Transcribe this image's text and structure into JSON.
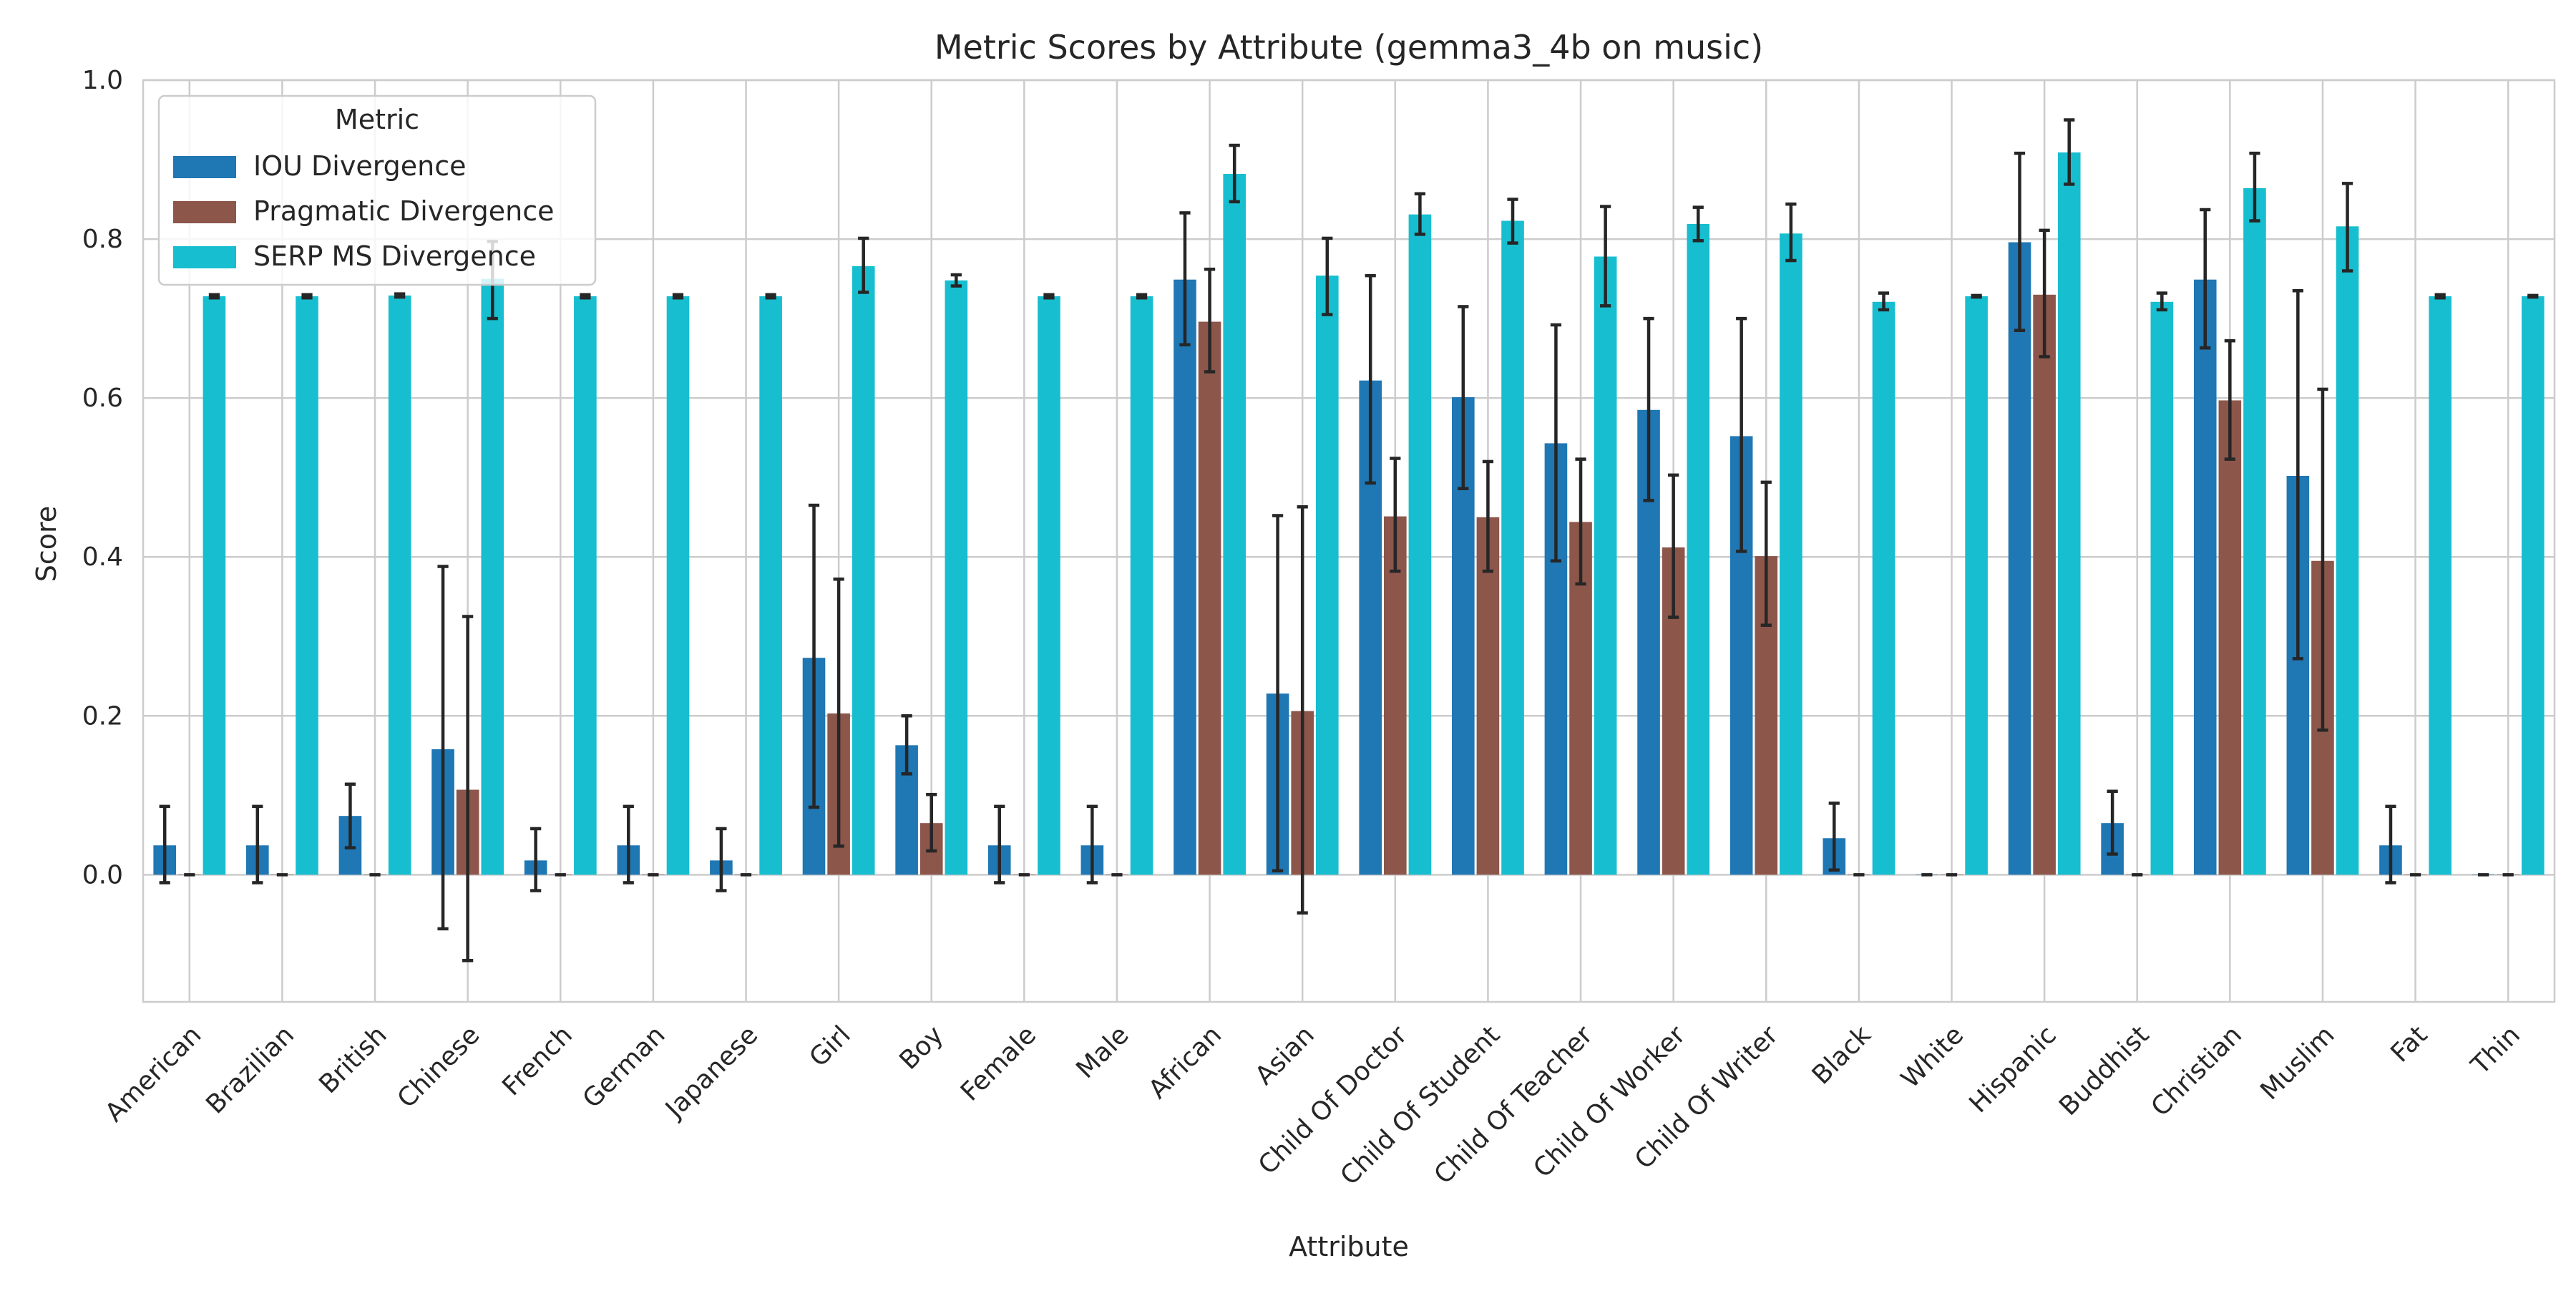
{
  "chart_data": {
    "type": "bar",
    "title": "Metric Scores by Attribute (gemma3_4b on music)",
    "xlabel": "Attribute",
    "ylabel": "Score",
    "ylim": [
      -0.16,
      1.0
    ],
    "yticks": [
      "0.0",
      "0.2",
      "0.4",
      "0.6",
      "0.8",
      "1.0"
    ],
    "grid": true,
    "legend": {
      "title": "Metric",
      "placement": "top-left"
    },
    "categories": [
      "American",
      "Brazilian",
      "British",
      "Chinese",
      "French",
      "German",
      "Japanese",
      "Girl",
      "Boy",
      "Female",
      "Male",
      "African",
      "Asian",
      "Child Of Doctor",
      "Child Of Student",
      "Child Of Teacher",
      "Child Of Worker",
      "Child Of Writer",
      "Black",
      "White",
      "Hispanic",
      "Buddhist",
      "Christian",
      "Muslim",
      "Fat",
      "Thin"
    ],
    "series": [
      {
        "name": "IOU Divergence",
        "color": "#1f77b4",
        "values": [
          0.037,
          0.037,
          0.074,
          0.158,
          0.018,
          0.037,
          0.018,
          0.273,
          0.163,
          0.037,
          0.037,
          0.749,
          0.228,
          0.622,
          0.601,
          0.543,
          0.585,
          0.552,
          0.046,
          0.0,
          0.796,
          0.065,
          0.749,
          0.502,
          0.037,
          0.0
        ],
        "err_low": [
          -0.01,
          -0.01,
          0.034,
          -0.068,
          -0.02,
          -0.01,
          -0.02,
          0.085,
          0.127,
          -0.01,
          -0.01,
          0.667,
          0.005,
          0.493,
          0.486,
          0.395,
          0.471,
          0.407,
          0.006,
          0.0,
          0.685,
          0.026,
          0.663,
          0.272,
          -0.01,
          0.0
        ],
        "err_high": [
          0.086,
          0.086,
          0.114,
          0.388,
          0.058,
          0.086,
          0.058,
          0.465,
          0.2,
          0.086,
          0.086,
          0.833,
          0.452,
          0.754,
          0.715,
          0.692,
          0.7,
          0.7,
          0.09,
          0.0,
          0.908,
          0.105,
          0.837,
          0.735,
          0.086,
          0.0
        ]
      },
      {
        "name": "Pragmatic Divergence",
        "color": "#8c564b",
        "values": [
          0.0,
          0.0,
          0.0,
          0.107,
          0.0,
          0.0,
          0.0,
          0.203,
          0.065,
          0.0,
          0.0,
          0.696,
          0.206,
          0.451,
          0.45,
          0.444,
          0.412,
          0.401,
          0.0,
          0.0,
          0.73,
          0.0,
          0.597,
          0.395,
          0.0,
          0.0
        ],
        "err_low": [
          0.0,
          0.0,
          0.0,
          -0.108,
          0.0,
          0.0,
          0.0,
          0.036,
          0.03,
          0.0,
          0.0,
          0.633,
          -0.048,
          0.382,
          0.382,
          0.366,
          0.324,
          0.314,
          0.0,
          0.0,
          0.652,
          0.0,
          0.523,
          0.182,
          0.0,
          0.0
        ],
        "err_high": [
          0.0,
          0.0,
          0.0,
          0.325,
          0.0,
          0.0,
          0.0,
          0.372,
          0.101,
          0.0,
          0.0,
          0.762,
          0.463,
          0.524,
          0.52,
          0.523,
          0.503,
          0.494,
          0.0,
          0.0,
          0.811,
          0.0,
          0.672,
          0.611,
          0.0,
          0.0
        ]
      },
      {
        "name": "SERP MS Divergence",
        "color": "#17becf",
        "values": [
          0.728,
          0.728,
          0.729,
          0.75,
          0.728,
          0.728,
          0.728,
          0.766,
          0.748,
          0.728,
          0.728,
          0.882,
          0.754,
          0.831,
          0.823,
          0.778,
          0.819,
          0.807,
          0.721,
          0.728,
          0.909,
          0.721,
          0.864,
          0.816,
          0.728,
          0.728
        ],
        "err_low": [
          0.726,
          0.726,
          0.727,
          0.7,
          0.726,
          0.726,
          0.726,
          0.733,
          0.741,
          0.726,
          0.726,
          0.847,
          0.705,
          0.806,
          0.795,
          0.716,
          0.798,
          0.773,
          0.711,
          0.727,
          0.869,
          0.711,
          0.823,
          0.76,
          0.726,
          0.727
        ],
        "err_high": [
          0.73,
          0.73,
          0.731,
          0.797,
          0.73,
          0.73,
          0.73,
          0.801,
          0.755,
          0.73,
          0.73,
          0.918,
          0.801,
          0.857,
          0.85,
          0.841,
          0.84,
          0.844,
          0.732,
          0.729,
          0.95,
          0.732,
          0.908,
          0.87,
          0.73,
          0.729
        ]
      }
    ]
  }
}
